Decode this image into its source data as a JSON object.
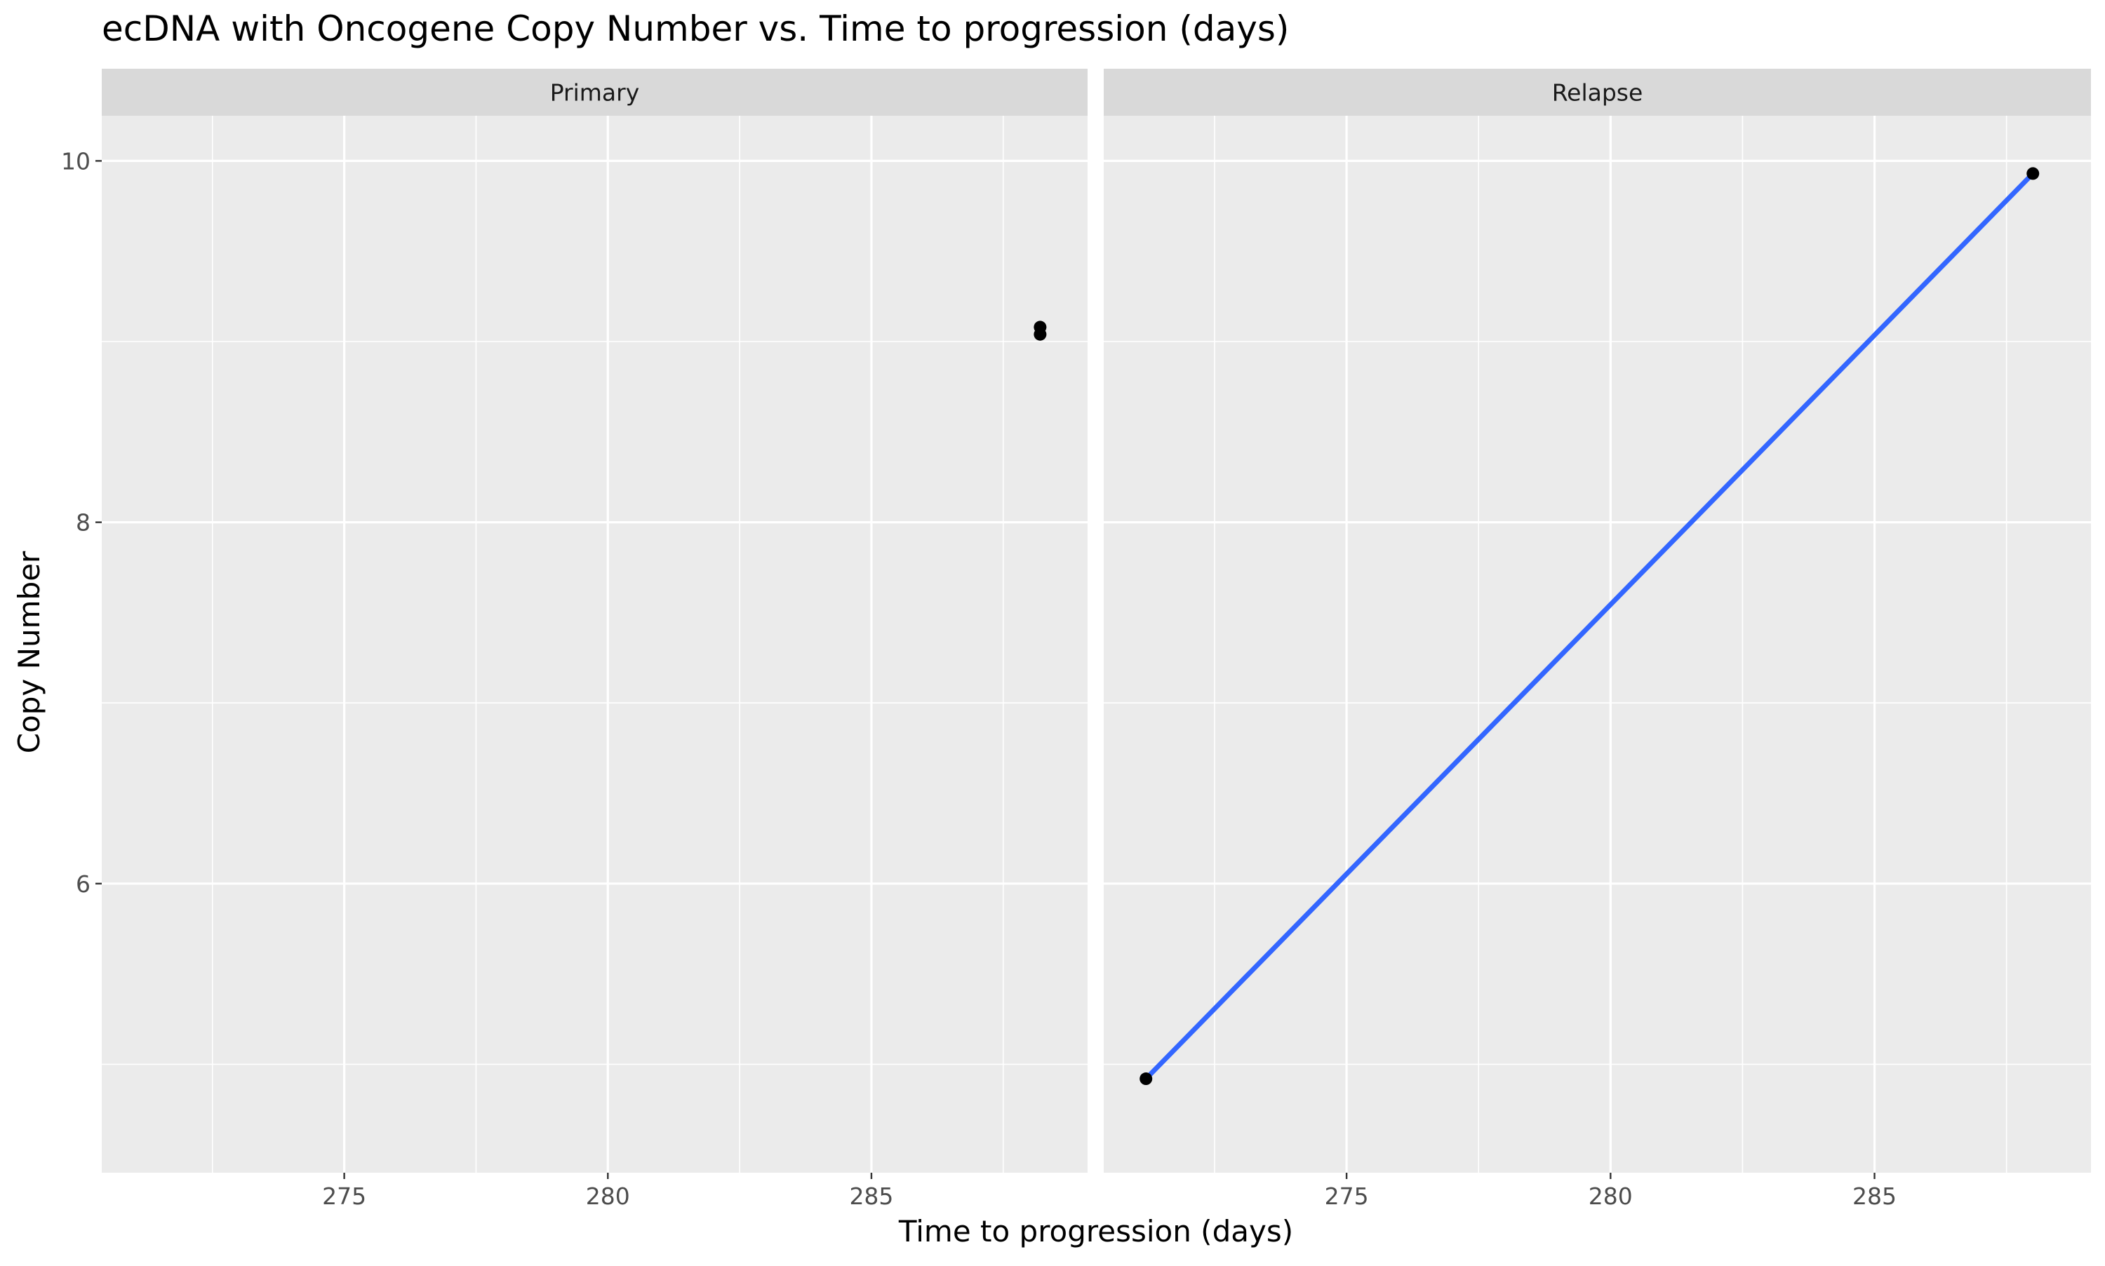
{
  "chart_data": {
    "type": "scatter",
    "title": "ecDNA with Oncogene Copy Number vs. Time to progression (days)",
    "xlabel": "Time to progression (days)",
    "ylabel": "Copy Number",
    "xlim": [
      270.4,
      289.1
    ],
    "ylim": [
      4.4,
      10.25
    ],
    "x_ticks": [
      275,
      280,
      285
    ],
    "x_tick_labels": [
      "275",
      "280",
      "285"
    ],
    "y_ticks": [
      6,
      8,
      10
    ],
    "y_tick_labels": [
      "6",
      "8",
      "10"
    ],
    "grid": true,
    "facets": [
      {
        "label": "Primary",
        "points": [
          {
            "x": 288.2,
            "y": 9.08
          },
          {
            "x": 288.2,
            "y": 9.04
          }
        ],
        "trend_line": null
      },
      {
        "label": "Relapse",
        "points": [
          {
            "x": 271.2,
            "y": 4.92
          },
          {
            "x": 288.0,
            "y": 9.93
          }
        ],
        "trend_line": {
          "x": [
            271.2,
            288.0
          ],
          "y": [
            4.92,
            9.93
          ]
        }
      }
    ],
    "colors": {
      "panel_background": "#ebebeb",
      "strip_background": "#d9d9d9",
      "grid": "#ffffff",
      "point": "#000000",
      "trend_line": "#3366ff"
    }
  }
}
